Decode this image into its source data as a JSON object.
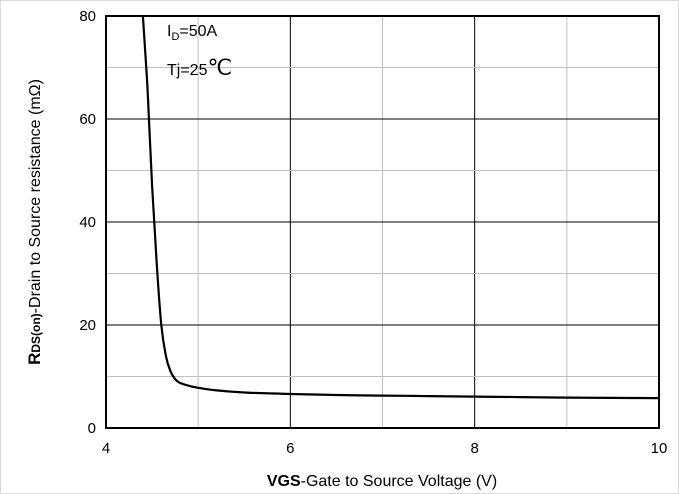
{
  "chart_data": {
    "type": "line",
    "title": "",
    "x_ticks": [
      "4",
      "6",
      "8",
      "10"
    ],
    "y_ticks": [
      "0",
      "20",
      "40",
      "60",
      "80"
    ],
    "xlim": [
      4,
      10
    ],
    "ylim": [
      0,
      80
    ],
    "grid": true,
    "xlabel": {
      "bold": "VGS",
      "rest": "-Gate to Source Voltage (V)"
    },
    "ylabel": {
      "bold_r": "R",
      "bold_sub": "DS(on)",
      "rest": "-Drain to Source resistance (mΩ)"
    },
    "annotations": {
      "id_label": "I",
      "id_sub": "D",
      "id_rest": "=50A",
      "tj_label": "Tj=25",
      "tj_unit": "℃"
    },
    "series": [
      {
        "x": [
          4.4,
          4.45,
          4.5,
          4.55,
          4.6,
          4.65,
          4.7,
          4.75,
          4.8,
          4.9,
          5.0,
          5.2,
          5.5,
          6.0,
          6.5,
          7.0,
          7.5,
          8.0,
          8.5,
          9.0,
          9.5,
          10.0
        ],
        "y": [
          80,
          66,
          47,
          32,
          20,
          14,
          11,
          9.5,
          8.8,
          8.2,
          7.8,
          7.3,
          6.9,
          6.6,
          6.4,
          6.3,
          6.2,
          6.1,
          6.0,
          5.9,
          5.85,
          5.8
        ]
      }
    ]
  }
}
